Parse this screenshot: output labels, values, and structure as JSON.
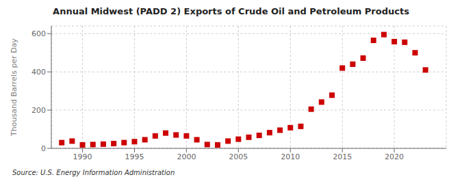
{
  "chart_data": {
    "type": "scatter",
    "title": "Annual Midwest (PADD 2) Exports of Crude Oil and Petroleum Products",
    "y_label": "Thousand Barrels per Day",
    "annotations": [
      "Source: U.S. Energy Information Administration"
    ],
    "x": [
      1988,
      1989,
      1990,
      1991,
      1992,
      1993,
      1994,
      1995,
      1996,
      1997,
      1998,
      1999,
      2000,
      2001,
      2002,
      2003,
      2004,
      2005,
      2006,
      2007,
      2008,
      2009,
      2010,
      2011,
      2012,
      2013,
      2014,
      2015,
      2016,
      2017,
      2018,
      2019,
      2020,
      2021,
      2022,
      2023
    ],
    "values": [
      30,
      38,
      18,
      20,
      22,
      25,
      30,
      35,
      45,
      65,
      80,
      70,
      65,
      45,
      20,
      18,
      38,
      48,
      58,
      68,
      82,
      95,
      108,
      115,
      205,
      242,
      278,
      420,
      440,
      472,
      565,
      595,
      558,
      555,
      500,
      410
    ],
    "color": "#cc0000",
    "marker": "square",
    "xlim": [
      1987,
      2025
    ],
    "xticks": [
      1990,
      1995,
      2000,
      2005,
      2010,
      2015,
      2020
    ],
    "ylim": [
      0,
      640
    ],
    "yticks": [
      0,
      200,
      400,
      600
    ],
    "grid": true
  }
}
